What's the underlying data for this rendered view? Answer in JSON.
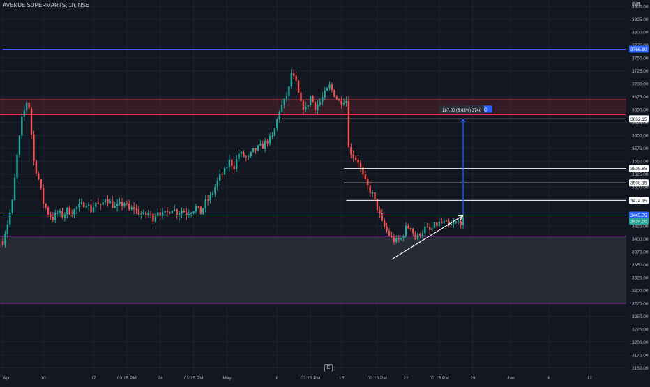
{
  "header": {
    "title": "AVENUE SUPERMARTS, 1h, NSE",
    "currency": "INR",
    "scale_button": "E"
  },
  "colors": {
    "background": "#131722",
    "grid": "#1e222d",
    "up": "#26a69a",
    "down": "#ef5350",
    "axis_text": "#b2b5be",
    "blue_line": "#2962ff",
    "pink_line": "#f23645",
    "purple_line": "#9c27b0",
    "white_line": "#ffffff"
  },
  "chart_data": {
    "type": "candlestick",
    "y_axis": {
      "min": 3140,
      "max": 3862,
      "tick_step": 25,
      "tick_labels": [
        "3850.00",
        "3825.00",
        "3800.00",
        "3775.00",
        "3750.00",
        "3725.00",
        "3700.00",
        "3675.00",
        "3650.00",
        "3625.00",
        "3600.00",
        "3575.00",
        "3550.00",
        "3525.00",
        "3500.00",
        "3475.00",
        "3450.00",
        "3425.00",
        "3400.00",
        "3375.00",
        "3350.00",
        "3325.00",
        "3300.00",
        "3275.00",
        "3250.00",
        "3225.00",
        "3200.00",
        "3175.00",
        "3150.00"
      ]
    },
    "x_axis": {
      "bars_total": 255,
      "tick_labels": [
        {
          "bar": 0,
          "label": "Apr"
        },
        {
          "bar": 17,
          "label": "10"
        },
        {
          "bar": 38,
          "label": "17"
        },
        {
          "bar": 52,
          "label": "03:15 PM"
        },
        {
          "bar": 66,
          "label": "24"
        },
        {
          "bar": 80,
          "label": "03:15 PM"
        },
        {
          "bar": 94,
          "label": "May"
        },
        {
          "bar": 115,
          "label": "8"
        },
        {
          "bar": 129,
          "label": "03:15 PM"
        },
        {
          "bar": 142,
          "label": "15"
        },
        {
          "bar": 157,
          "label": "03:15 PM"
        },
        {
          "bar": 169,
          "label": "22"
        },
        {
          "bar": 183,
          "label": "03:15 PM"
        },
        {
          "bar": 197,
          "label": "29"
        },
        {
          "bar": 213,
          "label": "Jun"
        },
        {
          "bar": 229,
          "label": "6"
        },
        {
          "bar": 246,
          "label": "12"
        }
      ]
    },
    "price_path": {
      "description_points": [
        [
          0,
          3395
        ],
        [
          2,
          3430
        ],
        [
          4,
          3470
        ],
        [
          6,
          3560
        ],
        [
          8,
          3630
        ],
        [
          10,
          3665
        ],
        [
          11,
          3655
        ],
        [
          13,
          3550
        ],
        [
          15,
          3515
        ],
        [
          17,
          3470
        ],
        [
          19,
          3450
        ],
        [
          21,
          3440
        ],
        [
          23,
          3450
        ],
        [
          25,
          3445
        ],
        [
          27,
          3455
        ],
        [
          29,
          3450
        ],
        [
          31,
          3460
        ],
        [
          33,
          3465
        ],
        [
          35,
          3470
        ],
        [
          37,
          3455
        ],
        [
          39,
          3470
        ],
        [
          41,
          3460
        ],
        [
          43,
          3480
        ],
        [
          45,
          3470
        ],
        [
          47,
          3460
        ],
        [
          49,
          3465
        ],
        [
          51,
          3470
        ],
        [
          53,
          3455
        ],
        [
          55,
          3460
        ],
        [
          57,
          3450
        ],
        [
          59,
          3445
        ],
        [
          61,
          3450
        ],
        [
          63,
          3440
        ],
        [
          65,
          3455
        ],
        [
          67,
          3445
        ],
        [
          69,
          3450
        ],
        [
          71,
          3460
        ],
        [
          73,
          3450
        ],
        [
          75,
          3455
        ],
        [
          77,
          3450
        ],
        [
          79,
          3455
        ],
        [
          81,
          3460
        ],
        [
          83,
          3450
        ],
        [
          85,
          3470
        ],
        [
          87,
          3480
        ],
        [
          89,
          3500
        ],
        [
          91,
          3520
        ],
        [
          93,
          3530
        ],
        [
          95,
          3550
        ],
        [
          97,
          3540
        ],
        [
          99,
          3565
        ],
        [
          101,
          3560
        ],
        [
          103,
          3555
        ],
        [
          105,
          3570
        ],
        [
          107,
          3575
        ],
        [
          109,
          3580
        ],
        [
          111,
          3590
        ],
        [
          113,
          3595
        ],
        [
          115,
          3630
        ],
        [
          116,
          3650
        ],
        [
          118,
          3665
        ],
        [
          120,
          3690
        ],
        [
          121,
          3720
        ],
        [
          123,
          3700
        ],
        [
          125,
          3660
        ],
        [
          127,
          3650
        ],
        [
          129,
          3675
        ],
        [
          131,
          3655
        ],
        [
          133,
          3665
        ],
        [
          135,
          3680
        ],
        [
          137,
          3695
        ],
        [
          139,
          3680
        ],
        [
          141,
          3665
        ],
        [
          143,
          3670
        ],
        [
          145,
          3665
        ]
      ],
      "segment_2": [
        [
          145,
          3575
        ],
        [
          147,
          3560
        ],
        [
          149,
          3550
        ],
        [
          151,
          3520
        ],
        [
          153,
          3500
        ],
        [
          155,
          3485
        ],
        [
          157,
          3460
        ],
        [
          159,
          3430
        ],
        [
          161,
          3415
        ],
        [
          163,
          3400
        ],
        [
          165,
          3395
        ],
        [
          167,
          3400
        ],
        [
          169,
          3420
        ],
        [
          171,
          3425
        ],
        [
          173,
          3400
        ],
        [
          175,
          3410
        ],
        [
          177,
          3420
        ],
        [
          179,
          3415
        ],
        [
          181,
          3425
        ],
        [
          183,
          3430
        ],
        [
          185,
          3430
        ],
        [
          187,
          3425
        ],
        [
          189,
          3428
        ],
        [
          191,
          3432
        ],
        [
          193,
          3434
        ]
      ]
    },
    "zones": [
      {
        "name": "supply-zone",
        "from": 3640,
        "to": 3669,
        "color": "#f23645"
      },
      {
        "name": "demand-zone",
        "from": 3275,
        "to": 3405,
        "color": "#9c27b0"
      }
    ],
    "horizontal_lines": [
      {
        "price": 3766.8,
        "color": "#2962ff",
        "from_bar": 0
      },
      {
        "price": 3445.75,
        "color": "#2962ff",
        "from_bar": 0
      },
      {
        "price": 3632.15,
        "color": "#ffffff",
        "from_bar": 117
      },
      {
        "price": 3535.85,
        "color": "#ffffff",
        "from_bar": 143
      },
      {
        "price": 3508.15,
        "color": "#ffffff",
        "from_bar": 143
      },
      {
        "price": 3474.15,
        "color": "#ffffff",
        "from_bar": 144
      }
    ],
    "trendline": {
      "from": [
        163,
        3360
      ],
      "to": [
        193,
        3445
      ]
    },
    "measure": {
      "bar": 193,
      "from": 3445,
      "to": 3632,
      "label": "187.00 (5.43%) 3740",
      "tag": "80"
    },
    "price_tags": [
      {
        "label": "3766.80",
        "price": 3766.8,
        "color": "#2962ff",
        "text_color": "#ffffff"
      },
      {
        "label": "3632.15",
        "price": 3632.15,
        "color": "#ffffff",
        "text_color": "#131722"
      },
      {
        "label": "3535.85",
        "price": 3535.85,
        "color": "#ffffff",
        "text_color": "#131722"
      },
      {
        "label": "3508.15",
        "price": 3508.15,
        "color": "#ffffff",
        "text_color": "#131722"
      },
      {
        "label": "3474.15",
        "price": 3474.15,
        "color": "#ffffff",
        "text_color": "#131722"
      },
      {
        "label": "3445.75",
        "price": 3445.75,
        "color": "#2962ff",
        "text_color": "#ffffff"
      },
      {
        "label": "3434.00",
        "price": 3434.0,
        "color": "#26a69a",
        "text_color": "#ffffff"
      }
    ]
  }
}
